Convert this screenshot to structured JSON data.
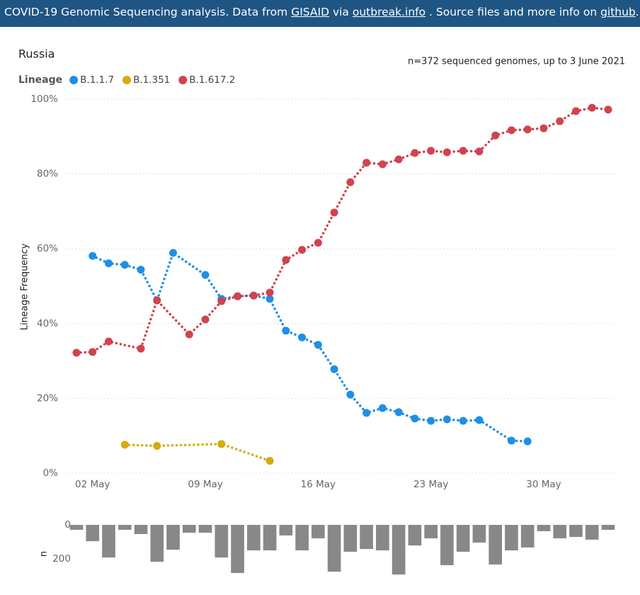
{
  "header": {
    "parts": [
      {
        "text": "COVID-19 Genomic Sequencing analysis. Data from "
      },
      {
        "text": "GISAID",
        "link": true
      },
      {
        "text": " via "
      },
      {
        "text": "outbreak.info",
        "link": true
      },
      {
        "text": " . Source files and more info on "
      },
      {
        "text": "github",
        "link": true
      },
      {
        "text": "."
      }
    ]
  },
  "chart_data": [
    {
      "type": "line",
      "title": "Russia",
      "subtitle": "n=372 sequenced genomes, up to 3 June 2021",
      "legend_title": "Lineage",
      "ylabel": "Lineage Frequency",
      "xlim": [
        "01 May",
        "03 Jun"
      ],
      "xticks": [
        "02 May",
        "09 May",
        "16 May",
        "23 May",
        "30 May"
      ],
      "ylim": [
        0,
        100
      ],
      "yticks": [
        {
          "value": 0,
          "label": "0%"
        },
        {
          "value": 20,
          "label": "20%"
        },
        {
          "value": 40,
          "label": "40%"
        },
        {
          "value": 60,
          "label": "60%"
        },
        {
          "value": 80,
          "label": "80%"
        },
        {
          "value": 100,
          "label": "100%"
        }
      ],
      "grid": true,
      "series": [
        {
          "name": "B.1.1.7",
          "color": "#1e8fe8",
          "x": [
            "02 May",
            "03 May",
            "04 May",
            "05 May",
            "06 May",
            "07 May",
            "09 May",
            "10 May",
            "11 May",
            "12 May",
            "13 May",
            "14 May",
            "15 May",
            "16 May",
            "17 May",
            "18 May",
            "19 May",
            "20 May",
            "21 May",
            "22 May",
            "23 May",
            "24 May",
            "25 May",
            "26 May",
            "28 May",
            "29 May"
          ],
          "values": [
            58.1,
            56.1,
            55.7,
            54.4,
            46.2,
            58.9,
            53.0,
            46.6,
            47.3,
            47.5,
            46.6,
            38.1,
            36.3,
            34.3,
            27.8,
            21.0,
            16.1,
            17.4,
            16.3,
            14.6,
            14.0,
            14.4,
            14.0,
            14.2,
            8.7,
            8.5
          ]
        },
        {
          "name": "B.1.351",
          "color": "#d4ac0d",
          "x": [
            "04 May",
            "06 May",
            "10 May",
            "13 May"
          ],
          "values": [
            7.6,
            7.3,
            7.8,
            3.3
          ]
        },
        {
          "name": "B.1.617.2",
          "color": "#d0434f",
          "x": [
            "01 May",
            "02 May",
            "03 May",
            "05 May",
            "06 May",
            "08 May",
            "09 May",
            "10 May",
            "11 May",
            "12 May",
            "13 May",
            "14 May",
            "15 May",
            "16 May",
            "17 May",
            "18 May",
            "19 May",
            "20 May",
            "21 May",
            "22 May",
            "23 May",
            "24 May",
            "25 May",
            "26 May",
            "27 May",
            "28 May",
            "29 May",
            "30 May",
            "31 May",
            "01 Jun",
            "02 Jun",
            "03 Jun"
          ],
          "values": [
            32.2,
            32.4,
            35.2,
            33.3,
            46.2,
            37.1,
            41.1,
            46.0,
            47.3,
            47.5,
            48.3,
            57.0,
            59.7,
            61.6,
            69.7,
            77.8,
            83.0,
            82.6,
            83.9,
            85.6,
            86.2,
            85.8,
            86.2,
            86.0,
            90.3,
            91.7,
            91.9,
            92.2,
            94.1,
            96.8,
            97.7,
            97.2
          ]
        }
      ]
    },
    {
      "type": "bar",
      "ylabel": "n",
      "color": "#888888",
      "inverted": true,
      "xlim": [
        "01 May",
        "03 Jun"
      ],
      "x": [
        "01 May",
        "02 May",
        "03 May",
        "04 May",
        "05 May",
        "06 May",
        "07 May",
        "08 May",
        "09 May",
        "10 May",
        "11 May",
        "12 May",
        "13 May",
        "14 May",
        "15 May",
        "16 May",
        "17 May",
        "18 May",
        "19 May",
        "20 May",
        "21 May",
        "22 May",
        "23 May",
        "24 May",
        "25 May",
        "26 May",
        "27 May",
        "28 May",
        "29 May",
        "30 May",
        "31 May",
        "01 Jun",
        "02 Jun",
        "03 Jun"
      ],
      "values": [
        29,
        96,
        192,
        29,
        54,
        217,
        146,
        46,
        46,
        192,
        283,
        150,
        150,
        62,
        150,
        79,
        275,
        158,
        142,
        150,
        292,
        121,
        79,
        237,
        158,
        104,
        233,
        150,
        133,
        37,
        79,
        71,
        87,
        29
      ],
      "ylim": [
        0,
        300
      ],
      "yticks": [
        0,
        200
      ]
    }
  ]
}
